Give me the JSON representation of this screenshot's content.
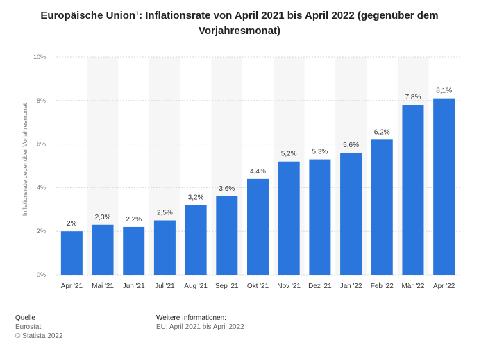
{
  "chart_data": {
    "type": "bar",
    "title": "Europäische Union¹: Inflationsrate von April 2021 bis April 2022 (gegenüber dem Vorjahresmonat)",
    "xlabel": "",
    "ylabel": "Inflationsrate gegenüber Vorjahresmonat",
    "categories": [
      "Apr '21",
      "Mai '21",
      "Jun '21",
      "Jul '21",
      "Aug '21",
      "Sep '21",
      "Okt '21",
      "Nov '21",
      "Dez '21",
      "Jan '22",
      "Feb '22",
      "Mär '22",
      "Apr '22"
    ],
    "values": [
      2,
      2.3,
      2.2,
      2.5,
      3.2,
      3.6,
      4.4,
      5.2,
      5.3,
      5.6,
      6.2,
      7.8,
      8.1
    ],
    "value_labels": [
      "2%",
      "2,3%",
      "2,2%",
      "2,5%",
      "3,2%",
      "3,6%",
      "4,4%",
      "5,2%",
      "5,3%",
      "5,6%",
      "6,2%",
      "7,8%",
      "8,1%"
    ],
    "ylim": [
      0,
      10
    ],
    "yticks": [
      0,
      2,
      4,
      6,
      8,
      10
    ],
    "ytick_labels": [
      "0%",
      "2%",
      "4%",
      "6%",
      "8%",
      "10%"
    ],
    "grid": true,
    "bar_color": "#2a76dd"
  },
  "footer": {
    "source_heading": "Quelle",
    "source_name": "Eurostat",
    "copyright": "© Statista 2022",
    "info_heading": "Weitere Informationen:",
    "info_text": "EU; April 2021 bis April 2022"
  }
}
